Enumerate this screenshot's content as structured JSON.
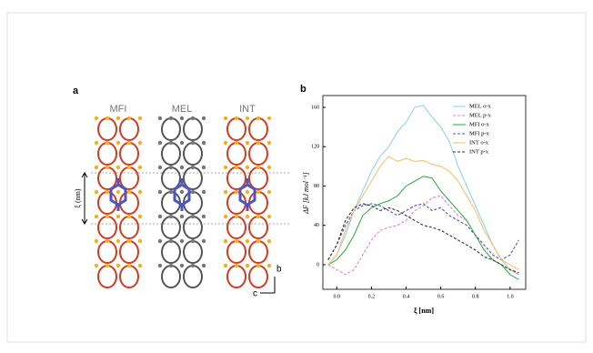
{
  "panel_a": {
    "label": "a",
    "frameworks": [
      "MFI",
      "MEL",
      "INT"
    ],
    "xi_label": "ξ (nm)",
    "axes": [
      "b",
      "c"
    ]
  },
  "chart_data": {
    "type": "line",
    "panel_label": "b",
    "x_label": "ξ [nm]",
    "y_label": "ΔF [kJ mol⁻¹]",
    "x": [
      -0.05,
      0,
      0.05,
      0.1,
      0.15,
      0.2,
      0.25,
      0.3,
      0.35,
      0.4,
      0.45,
      0.5,
      0.55,
      0.6,
      0.65,
      0.7,
      0.75,
      0.8,
      0.85,
      0.9,
      0.95,
      1.0,
      1.05
    ],
    "series": [
      {
        "name": "MEL o-x",
        "color": "#8fd3f0",
        "dashed": false,
        "values": [
          0,
          10,
          30,
          55,
          75,
          95,
          110,
          120,
          135,
          145,
          160,
          162,
          150,
          140,
          125,
          100,
          80,
          60,
          40,
          20,
          5,
          -5,
          -10
        ]
      },
      {
        "name": "MEL p-x",
        "color": "#e080d0",
        "dashed": true,
        "values": [
          0,
          -5,
          -10,
          -5,
          10,
          25,
          35,
          38,
          40,
          45,
          55,
          60,
          68,
          70,
          60,
          50,
          45,
          30,
          15,
          5,
          0,
          -5,
          -10
        ]
      },
      {
        "name": "MFI o-x",
        "color": "#3cb04a",
        "dashed": false,
        "values": [
          0,
          5,
          15,
          30,
          50,
          58,
          62,
          65,
          70,
          80,
          85,
          90,
          88,
          75,
          65,
          55,
          45,
          30,
          15,
          5,
          0,
          -10,
          -15
        ]
      },
      {
        "name": "MFI p-x",
        "color": "#5050c0",
        "dashed": true,
        "values": [
          5,
          20,
          40,
          55,
          60,
          62,
          60,
          55,
          50,
          55,
          60,
          62,
          55,
          58,
          50,
          45,
          40,
          30,
          20,
          10,
          5,
          10,
          25
        ]
      },
      {
        "name": "INT o-x",
        "color": "#f8c070",
        "dashed": false,
        "values": [
          0,
          10,
          35,
          55,
          70,
          85,
          100,
          110,
          105,
          108,
          105,
          106,
          102,
          100,
          95,
          85,
          70,
          55,
          35,
          20,
          5,
          0,
          -5
        ]
      },
      {
        "name": "INT p-x",
        "color": "#333333",
        "dashed": true,
        "values": [
          5,
          20,
          45,
          58,
          62,
          60,
          55,
          58,
          55,
          50,
          45,
          40,
          38,
          35,
          30,
          25,
          20,
          15,
          8,
          5,
          0,
          -5,
          -8
        ]
      }
    ],
    "xlim": [
      -0.08,
      1.09
    ],
    "ylim": [
      -25,
      172
    ],
    "xticks": [
      {
        "value": 0,
        "label": "0.0"
      },
      0.2,
      0.4,
      0.6,
      0.8,
      {
        "value": 1,
        "label": "1.0"
      }
    ],
    "yticks": [
      0,
      40,
      80,
      120,
      160
    ],
    "legend": "upper right"
  }
}
